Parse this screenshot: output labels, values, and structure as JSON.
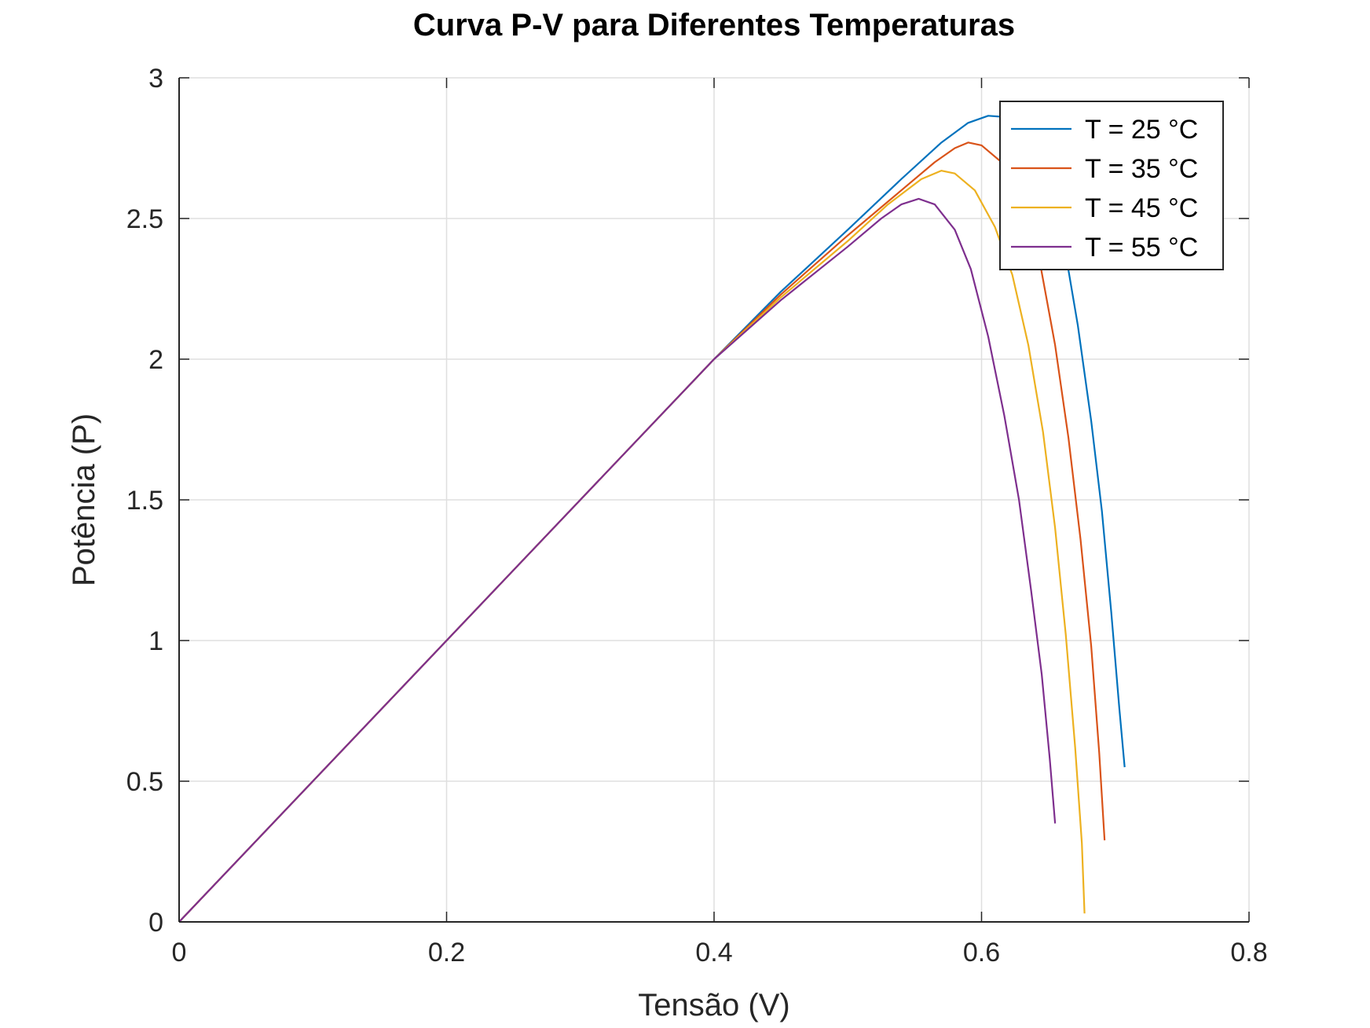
{
  "chart_data": {
    "type": "line",
    "title": "Curva P-V para Diferentes Temperaturas",
    "xlabel": "Tensão (V)",
    "ylabel": "Potência (P)",
    "xlim": [
      0,
      0.8
    ],
    "ylim": [
      0,
      3
    ],
    "xticks": [
      "0",
      "0.2",
      "0.4",
      "0.6",
      "0.8"
    ],
    "yticks": [
      "0",
      "0.5",
      "1",
      "1.5",
      "2",
      "2.5",
      "3"
    ],
    "grid": true,
    "legend_position": "top-right",
    "series": [
      {
        "name": "T = 25 °C",
        "color": "#0072BD",
        "points": [
          [
            0,
            0
          ],
          [
            0.1,
            0.5
          ],
          [
            0.2,
            1.0
          ],
          [
            0.3,
            1.5
          ],
          [
            0.4,
            2.0
          ],
          [
            0.45,
            2.24
          ],
          [
            0.5,
            2.46
          ],
          [
            0.54,
            2.64
          ],
          [
            0.57,
            2.77
          ],
          [
            0.59,
            2.84
          ],
          [
            0.605,
            2.865
          ],
          [
            0.62,
            2.86
          ],
          [
            0.635,
            2.8
          ],
          [
            0.65,
            2.62
          ],
          [
            0.662,
            2.4
          ],
          [
            0.672,
            2.12
          ],
          [
            0.682,
            1.78
          ],
          [
            0.69,
            1.46
          ],
          [
            0.697,
            1.1
          ],
          [
            0.703,
            0.76
          ],
          [
            0.707,
            0.55
          ]
        ]
      },
      {
        "name": "T = 35 °C",
        "color": "#D95319",
        "points": [
          [
            0,
            0
          ],
          [
            0.1,
            0.5
          ],
          [
            0.2,
            1.0
          ],
          [
            0.3,
            1.5
          ],
          [
            0.4,
            2.0
          ],
          [
            0.45,
            2.23
          ],
          [
            0.5,
            2.44
          ],
          [
            0.54,
            2.6
          ],
          [
            0.565,
            2.7
          ],
          [
            0.58,
            2.75
          ],
          [
            0.59,
            2.77
          ],
          [
            0.6,
            2.76
          ],
          [
            0.615,
            2.7
          ],
          [
            0.63,
            2.54
          ],
          [
            0.643,
            2.36
          ],
          [
            0.655,
            2.05
          ],
          [
            0.665,
            1.72
          ],
          [
            0.674,
            1.36
          ],
          [
            0.682,
            0.98
          ],
          [
            0.688,
            0.6
          ],
          [
            0.692,
            0.29
          ]
        ]
      },
      {
        "name": "T = 45 °C",
        "color": "#EDB120",
        "points": [
          [
            0,
            0
          ],
          [
            0.1,
            0.5
          ],
          [
            0.2,
            1.0
          ],
          [
            0.3,
            1.5
          ],
          [
            0.4,
            2.0
          ],
          [
            0.45,
            2.22
          ],
          [
            0.5,
            2.42
          ],
          [
            0.53,
            2.55
          ],
          [
            0.555,
            2.64
          ],
          [
            0.57,
            2.67
          ],
          [
            0.58,
            2.66
          ],
          [
            0.595,
            2.6
          ],
          [
            0.61,
            2.47
          ],
          [
            0.623,
            2.3
          ],
          [
            0.635,
            2.05
          ],
          [
            0.646,
            1.74
          ],
          [
            0.655,
            1.4
          ],
          [
            0.663,
            1.02
          ],
          [
            0.67,
            0.62
          ],
          [
            0.675,
            0.28
          ],
          [
            0.677,
            0.03
          ]
        ]
      },
      {
        "name": "T = 55 °C",
        "color": "#7E2F8E",
        "points": [
          [
            0,
            0
          ],
          [
            0.1,
            0.5
          ],
          [
            0.2,
            1.0
          ],
          [
            0.3,
            1.5
          ],
          [
            0.4,
            2.0
          ],
          [
            0.45,
            2.21
          ],
          [
            0.5,
            2.4
          ],
          [
            0.525,
            2.5
          ],
          [
            0.54,
            2.55
          ],
          [
            0.553,
            2.57
          ],
          [
            0.565,
            2.55
          ],
          [
            0.58,
            2.46
          ],
          [
            0.592,
            2.32
          ],
          [
            0.605,
            2.08
          ],
          [
            0.617,
            1.8
          ],
          [
            0.628,
            1.5
          ],
          [
            0.637,
            1.18
          ],
          [
            0.645,
            0.88
          ],
          [
            0.651,
            0.58
          ],
          [
            0.655,
            0.35
          ]
        ]
      }
    ]
  }
}
